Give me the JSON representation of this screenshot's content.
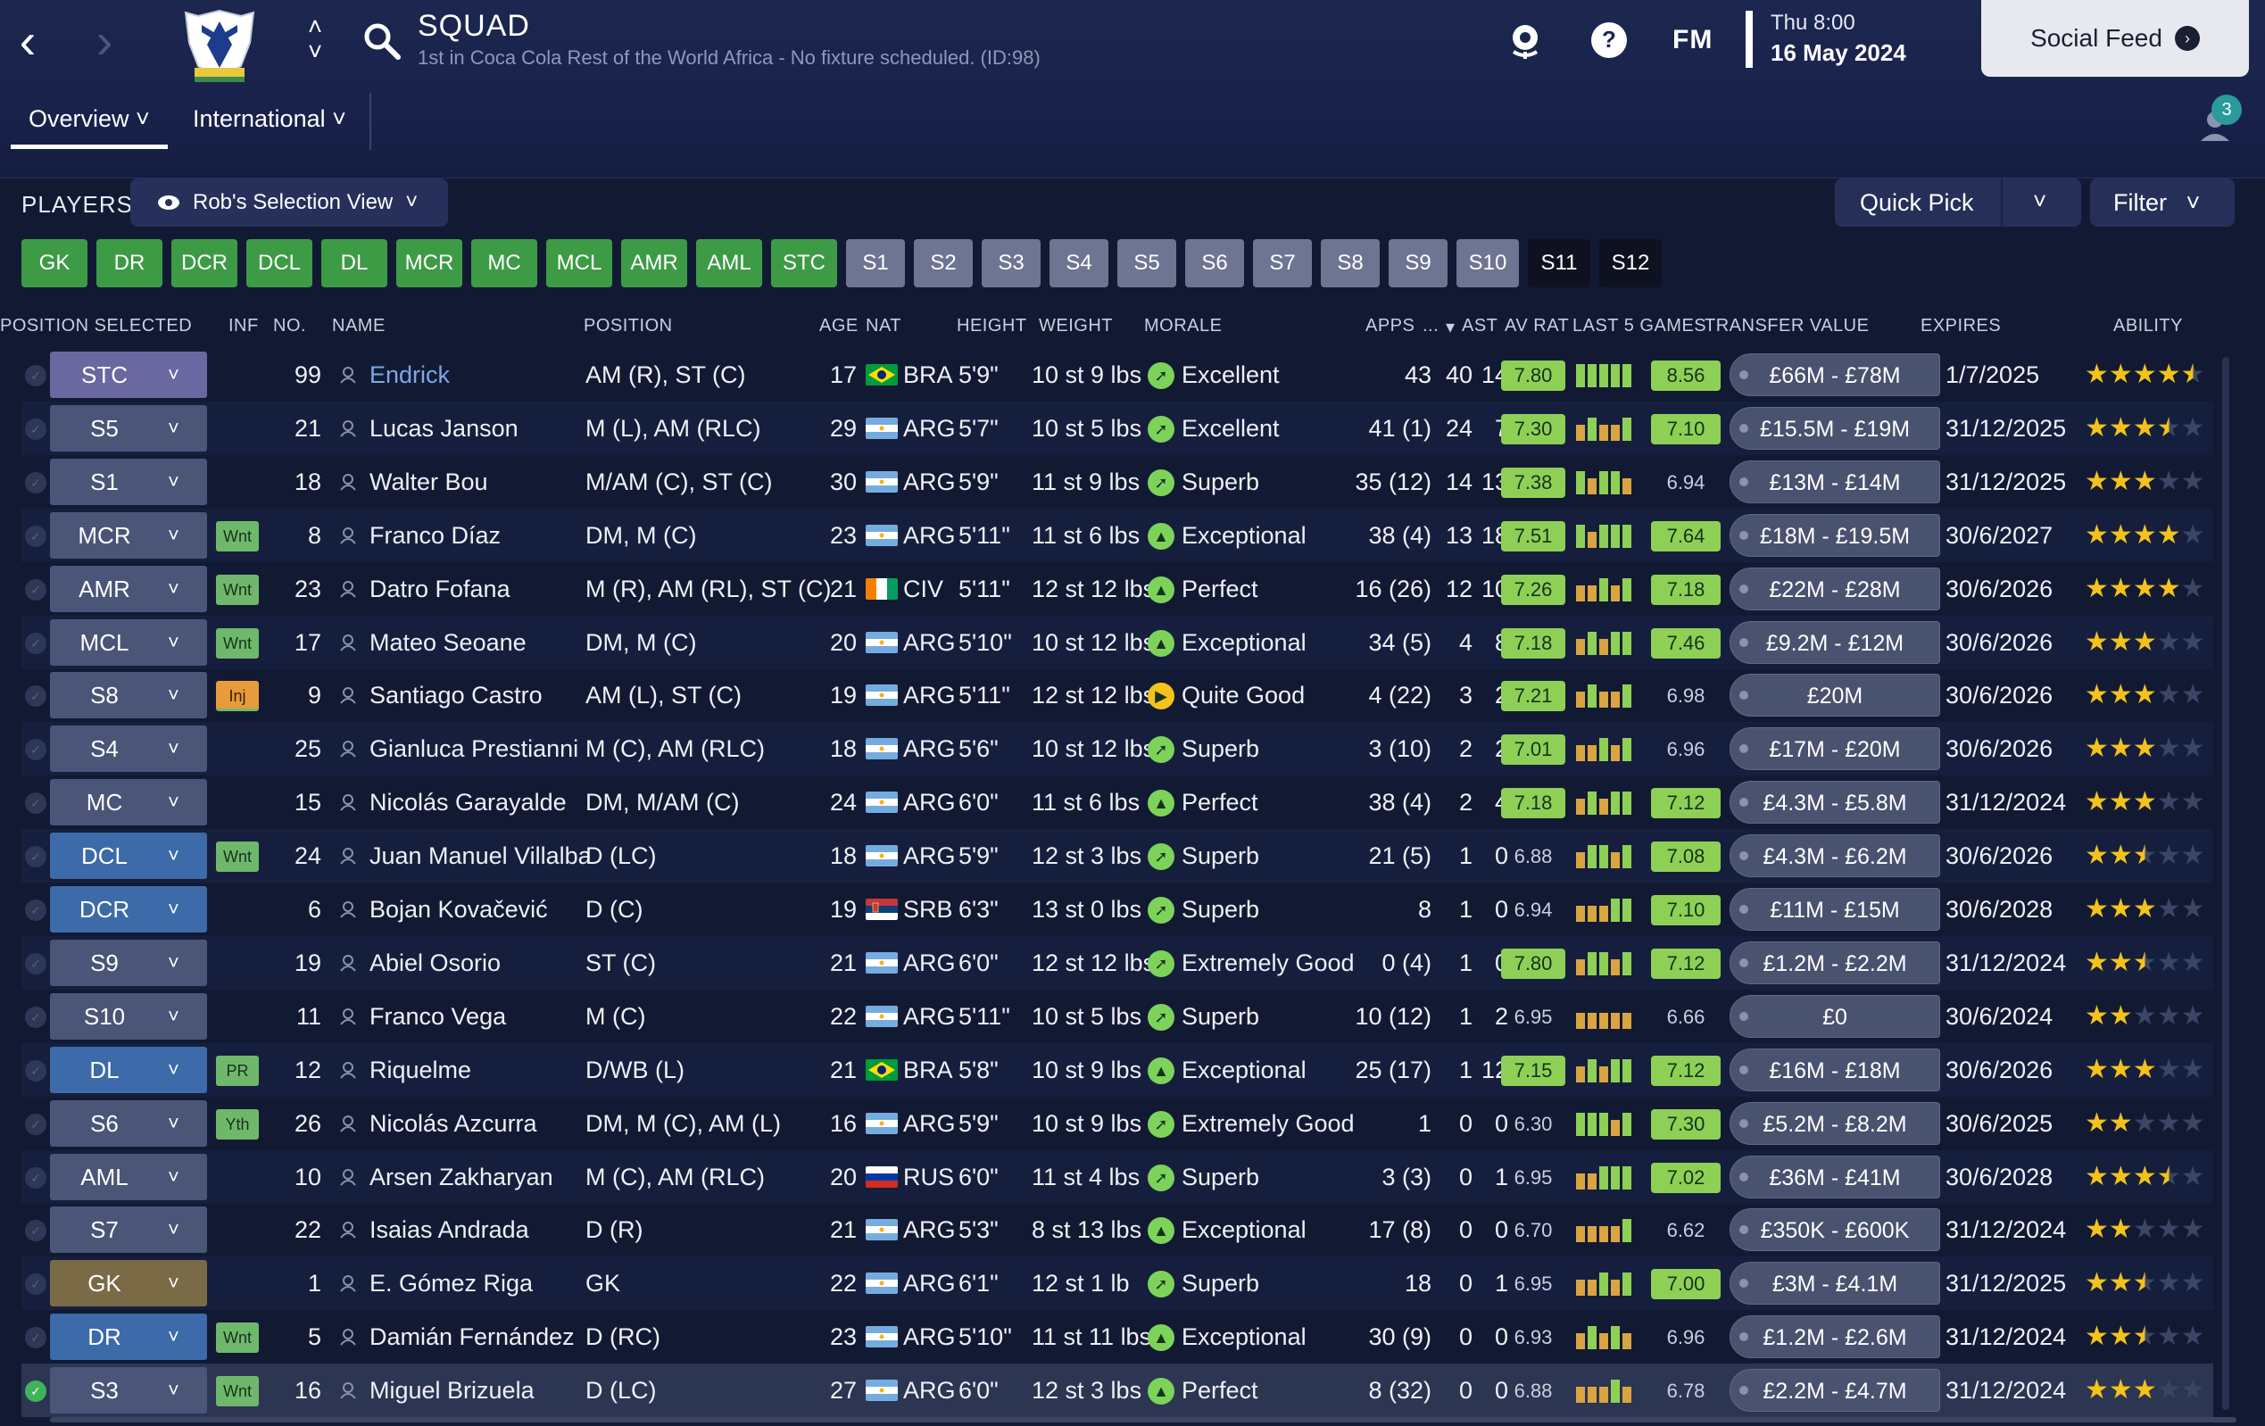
{
  "header": {
    "title": "SQUAD",
    "subtitle": "1st in Coca Cola Rest of the World Africa - No fixture scheduled. (ID:98)",
    "fm_logo": "FM",
    "date_day": "Thu 8:00",
    "date_full": "16 May 2024",
    "social_feed": "Social Feed",
    "notification_count": "3",
    "icons": [
      "back-icon",
      "forward-icon",
      "club-crest",
      "up-down-icon",
      "search-icon",
      "football-globe-icon",
      "help-icon",
      "notification-icon"
    ]
  },
  "tabs": [
    {
      "label": "Overview"
    },
    {
      "label": "International"
    }
  ],
  "toolbar": {
    "players_label": "PLAYERS",
    "view_label": "Rob's Selection View",
    "quick_pick": "Quick Pick",
    "filter": "Filter"
  },
  "position_chips": [
    {
      "label": "GK",
      "type": "filled"
    },
    {
      "label": "DR",
      "type": "filled"
    },
    {
      "label": "DCR",
      "type": "filled"
    },
    {
      "label": "DCL",
      "type": "filled"
    },
    {
      "label": "DL",
      "type": "filled"
    },
    {
      "label": "MCR",
      "type": "filled"
    },
    {
      "label": "MC",
      "type": "filled"
    },
    {
      "label": "MCL",
      "type": "filled"
    },
    {
      "label": "AMR",
      "type": "filled"
    },
    {
      "label": "AML",
      "type": "filled"
    },
    {
      "label": "STC",
      "type": "filled"
    },
    {
      "label": "S1",
      "type": "sub"
    },
    {
      "label": "S2",
      "type": "sub"
    },
    {
      "label": "S3",
      "type": "sub"
    },
    {
      "label": "S4",
      "type": "sub"
    },
    {
      "label": "S5",
      "type": "sub"
    },
    {
      "label": "S6",
      "type": "sub"
    },
    {
      "label": "S7",
      "type": "sub"
    },
    {
      "label": "S8",
      "type": "sub"
    },
    {
      "label": "S9",
      "type": "sub"
    },
    {
      "label": "S10",
      "type": "sub"
    },
    {
      "label": "S11",
      "type": "empty"
    },
    {
      "label": "S12",
      "type": "empty"
    }
  ],
  "columns": {
    "position_selected": "POSITION SELECTED",
    "inf": "INF",
    "no": "NO.",
    "name": "NAME",
    "position": "POSITION",
    "age": "AGE",
    "nat": "NAT",
    "height": "HEIGHT",
    "weight": "WEIGHT",
    "morale": "MORALE",
    "apps": "APPS",
    "more": "...",
    "ast": "AST",
    "av_rat": "AV RAT",
    "last5": "LAST 5 GAMES",
    "transfer_value": "TRANSFER VALUE",
    "expires": "EXPIRES",
    "ability": "ABILITY"
  },
  "colors": {
    "chip_green": "#3d9b46",
    "chip_sub": "#6d7593",
    "rating_green": "#8ed056",
    "star": "#f3c21b",
    "link": "#7fa6e6"
  },
  "players": [
    {
      "sel": "STC",
      "selcls": "bg-att",
      "inf": "",
      "no": "99",
      "name": "Endrick",
      "link": true,
      "position": "AM (R), ST (C)",
      "age": "17",
      "flag": "bra",
      "nat": "BRA",
      "height": "5'9\"",
      "weight": "10 st 9 lbs",
      "morale": "Excellent",
      "mor": "up",
      "apps": "43",
      "gls": "40",
      "ast": "14",
      "av": "7.80",
      "avg": true,
      "bars": [
        "g",
        "g",
        "g",
        "g",
        "g"
      ],
      "last": "8.56",
      "lastg": true,
      "tv": "£66M - £78M",
      "exp": "1/7/2025",
      "stars": 4.5,
      "checked": false
    },
    {
      "sel": "S5",
      "selcls": "bg-mid",
      "inf": "",
      "no": "21",
      "name": "Lucas Janson",
      "link": false,
      "position": "M (L), AM (RLC)",
      "age": "29",
      "flag": "arg",
      "nat": "ARG",
      "height": "5'7\"",
      "weight": "10 st 5 lbs",
      "morale": "Excellent",
      "mor": "up",
      "apps": "41 (1)",
      "gls": "24",
      "ast": "7",
      "av": "7.30",
      "avg": true,
      "bars": [
        "o",
        "g",
        "o",
        "o",
        "g"
      ],
      "last": "7.10",
      "lastg": true,
      "tv": "£15.5M - £19M",
      "exp": "31/12/2025",
      "stars": 3.5,
      "checked": false
    },
    {
      "sel": "S1",
      "selcls": "bg-mid",
      "inf": "",
      "no": "18",
      "name": "Walter Bou",
      "link": false,
      "position": "M/AM (C), ST (C)",
      "age": "30",
      "flag": "arg",
      "nat": "ARG",
      "height": "5'9\"",
      "weight": "11 st 9 lbs",
      "morale": "Superb",
      "mor": "up",
      "apps": "35 (12)",
      "gls": "14",
      "ast": "13",
      "av": "7.38",
      "avg": true,
      "bars": [
        "g",
        "o",
        "g",
        "g",
        "o"
      ],
      "last": "6.94",
      "lastg": false,
      "tv": "£13M - £14M",
      "exp": "31/12/2025",
      "stars": 3,
      "checked": false
    },
    {
      "sel": "MCR",
      "selcls": "bg-mid",
      "inf": "Wnt",
      "no": "8",
      "name": "Franco Díaz",
      "link": false,
      "position": "DM, M (C)",
      "age": "23",
      "flag": "arg",
      "nat": "ARG",
      "height": "5'11\"",
      "weight": "11 st 6 lbs",
      "morale": "Exceptional",
      "mor": "top",
      "apps": "38 (4)",
      "gls": "13",
      "ast": "18",
      "av": "7.51",
      "avg": true,
      "bars": [
        "g",
        "o",
        "g",
        "g",
        "g"
      ],
      "last": "7.64",
      "lastg": true,
      "tv": "£18M - £19.5M",
      "exp": "30/6/2027",
      "stars": 4,
      "checked": false
    },
    {
      "sel": "AMR",
      "selcls": "bg-mid",
      "inf": "Wnt",
      "no": "23",
      "name": "Datro Fofana",
      "link": false,
      "position": "M (R), AM (RL), ST (C)",
      "age": "21",
      "flag": "civ",
      "nat": "CIV",
      "height": "5'11\"",
      "weight": "12 st 12 lbs",
      "morale": "Perfect",
      "mor": "top",
      "apps": "16 (26)",
      "gls": "12",
      "ast": "10",
      "av": "7.26",
      "avg": true,
      "bars": [
        "o",
        "o",
        "g",
        "o",
        "g"
      ],
      "last": "7.18",
      "lastg": true,
      "tv": "£22M - £28M",
      "exp": "30/6/2026",
      "stars": 4,
      "checked": false
    },
    {
      "sel": "MCL",
      "selcls": "bg-mid",
      "inf": "Wnt",
      "no": "17",
      "name": "Mateo Seoane",
      "link": false,
      "position": "DM, M (C)",
      "age": "20",
      "flag": "arg",
      "nat": "ARG",
      "height": "5'10\"",
      "weight": "10 st 12 lbs",
      "morale": "Exceptional",
      "mor": "top",
      "apps": "34 (5)",
      "gls": "4",
      "ast": "8",
      "av": "7.18",
      "avg": true,
      "bars": [
        "o",
        "g",
        "o",
        "g",
        "g"
      ],
      "last": "7.46",
      "lastg": true,
      "tv": "£9.2M - £12M",
      "exp": "30/6/2026",
      "stars": 3,
      "checked": false
    },
    {
      "sel": "S8",
      "selcls": "bg-mid",
      "inf": "Inj",
      "no": "9",
      "name": "Santiago Castro",
      "link": false,
      "position": "AM (L), ST (C)",
      "age": "19",
      "flag": "arg",
      "nat": "ARG",
      "height": "5'11\"",
      "weight": "12 st 12 lbs",
      "morale": "Quite Good",
      "mor": "ok",
      "apps": "4 (22)",
      "gls": "3",
      "ast": "2",
      "av": "7.21",
      "avg": true,
      "bars": [
        "o",
        "g",
        "o",
        "o",
        "g"
      ],
      "last": "6.98",
      "lastg": false,
      "tv": "£20M",
      "exp": "30/6/2026",
      "stars": 3,
      "checked": false
    },
    {
      "sel": "S4",
      "selcls": "bg-mid",
      "inf": "",
      "no": "25",
      "name": "Gianluca Prestianni",
      "link": false,
      "position": "M (C), AM (RLC)",
      "age": "18",
      "flag": "arg",
      "nat": "ARG",
      "height": "5'6\"",
      "weight": "10 st 12 lbs",
      "morale": "Superb",
      "mor": "up",
      "apps": "3 (10)",
      "gls": "2",
      "ast": "2",
      "av": "7.01",
      "avg": true,
      "bars": [
        "o",
        "o",
        "g",
        "o",
        "g"
      ],
      "last": "6.96",
      "lastg": false,
      "tv": "£17M - £20M",
      "exp": "30/6/2026",
      "stars": 3,
      "checked": false
    },
    {
      "sel": "MC",
      "selcls": "bg-mid",
      "inf": "",
      "no": "15",
      "name": "Nicolás Garayalde",
      "link": false,
      "position": "DM, M/AM (C)",
      "age": "24",
      "flag": "arg",
      "nat": "ARG",
      "height": "6'0\"",
      "weight": "11 st 6 lbs",
      "morale": "Perfect",
      "mor": "top",
      "apps": "38 (4)",
      "gls": "2",
      "ast": "4",
      "av": "7.18",
      "avg": true,
      "bars": [
        "o",
        "g",
        "o",
        "g",
        "g"
      ],
      "last": "7.12",
      "lastg": true,
      "tv": "£4.3M - £5.8M",
      "exp": "31/12/2024",
      "stars": 3,
      "checked": false
    },
    {
      "sel": "DCL",
      "selcls": "bg-def",
      "inf": "Wnt",
      "no": "24",
      "name": "Juan Manuel Villalba",
      "link": false,
      "position": "D (LC)",
      "age": "18",
      "flag": "arg",
      "nat": "ARG",
      "height": "5'9\"",
      "weight": "12 st 3 lbs",
      "morale": "Superb",
      "mor": "up",
      "apps": "21 (5)",
      "gls": "1",
      "ast": "0",
      "av": "6.88",
      "avg": false,
      "bars": [
        "o",
        "g",
        "g",
        "o",
        "g"
      ],
      "last": "7.08",
      "lastg": true,
      "tv": "£4.3M - £6.2M",
      "exp": "30/6/2026",
      "stars": 2.5,
      "checked": false
    },
    {
      "sel": "DCR",
      "selcls": "bg-def",
      "inf": "",
      "no": "6",
      "name": "Bojan Kovačević",
      "link": false,
      "position": "D (C)",
      "age": "19",
      "flag": "srb",
      "nat": "SRB",
      "height": "6'3\"",
      "weight": "13 st 0 lbs",
      "morale": "Superb",
      "mor": "up",
      "apps": "8",
      "gls": "1",
      "ast": "0",
      "av": "6.94",
      "avg": false,
      "bars": [
        "o",
        "o",
        "o",
        "g",
        "g"
      ],
      "last": "7.10",
      "lastg": true,
      "tv": "£11M - £15M",
      "exp": "30/6/2028",
      "stars": 3,
      "checked": false
    },
    {
      "sel": "S9",
      "selcls": "bg-mid",
      "inf": "",
      "no": "19",
      "name": "Abiel Osorio",
      "link": false,
      "position": "ST (C)",
      "age": "21",
      "flag": "arg",
      "nat": "ARG",
      "height": "6'0\"",
      "weight": "12 st 12 lbs",
      "morale": "Extremely Good",
      "mor": "up",
      "apps": "0 (4)",
      "gls": "1",
      "ast": "0",
      "av": "7.80",
      "avg": true,
      "bars": [
        "o",
        "g",
        "g",
        "o",
        "g"
      ],
      "last": "7.12",
      "lastg": true,
      "tv": "£1.2M - £2.2M",
      "exp": "31/12/2024",
      "stars": 2.5,
      "checked": false
    },
    {
      "sel": "S10",
      "selcls": "bg-mid",
      "inf": "",
      "no": "11",
      "name": "Franco Vega",
      "link": false,
      "position": "M (C)",
      "age": "22",
      "flag": "arg",
      "nat": "ARG",
      "height": "5'11\"",
      "weight": "10 st 5 lbs",
      "morale": "Superb",
      "mor": "up",
      "apps": "10 (12)",
      "gls": "1",
      "ast": "2",
      "av": "6.95",
      "avg": false,
      "bars": [
        "o",
        "o",
        "o",
        "o",
        "o"
      ],
      "last": "6.66",
      "lastg": false,
      "tv": "£0",
      "exp": "30/6/2024",
      "stars": 2,
      "checked": false
    },
    {
      "sel": "DL",
      "selcls": "bg-def",
      "inf": "PR",
      "no": "12",
      "name": "Riquelme",
      "link": false,
      "position": "D/WB (L)",
      "age": "21",
      "flag": "bra",
      "nat": "BRA",
      "height": "5'8\"",
      "weight": "10 st 9 lbs",
      "morale": "Exceptional",
      "mor": "top",
      "apps": "25 (17)",
      "gls": "1",
      "ast": "12",
      "av": "7.15",
      "avg": true,
      "bars": [
        "o",
        "g",
        "o",
        "g",
        "g"
      ],
      "last": "7.12",
      "lastg": true,
      "tv": "£16M - £18M",
      "exp": "30/6/2026",
      "stars": 3,
      "checked": false
    },
    {
      "sel": "S6",
      "selcls": "bg-mid",
      "inf": "Yth",
      "no": "26",
      "name": "Nicolás Azcurra",
      "link": false,
      "position": "DM, M (C), AM (L)",
      "age": "16",
      "flag": "arg",
      "nat": "ARG",
      "height": "5'9\"",
      "weight": "10 st 9 lbs",
      "morale": "Extremely Good",
      "mor": "up",
      "apps": "1",
      "gls": "0",
      "ast": "0",
      "av": "6.30",
      "avg": false,
      "bars": [
        "g",
        "g",
        "g",
        "o",
        "g"
      ],
      "last": "7.30",
      "lastg": true,
      "tv": "£5.2M - £8.2M",
      "exp": "30/6/2025",
      "stars": 2,
      "checked": false
    },
    {
      "sel": "AML",
      "selcls": "bg-mid",
      "inf": "",
      "no": "10",
      "name": "Arsen Zakharyan",
      "link": false,
      "position": "M (C), AM (RLC)",
      "age": "20",
      "flag": "rus",
      "nat": "RUS",
      "height": "6'0\"",
      "weight": "11 st 4 lbs",
      "morale": "Superb",
      "mor": "up",
      "apps": "3 (3)",
      "gls": "0",
      "ast": "1",
      "av": "6.95",
      "avg": false,
      "bars": [
        "o",
        "o",
        "g",
        "g",
        "g"
      ],
      "last": "7.02",
      "lastg": true,
      "tv": "£36M - £41M",
      "exp": "30/6/2028",
      "stars": 3.5,
      "checked": false
    },
    {
      "sel": "S7",
      "selcls": "bg-mid",
      "inf": "",
      "no": "22",
      "name": "Isaias Andrada",
      "link": false,
      "position": "D (R)",
      "age": "21",
      "flag": "arg",
      "nat": "ARG",
      "height": "5'3\"",
      "weight": "8 st 13 lbs",
      "morale": "Exceptional",
      "mor": "top",
      "apps": "17 (8)",
      "gls": "0",
      "ast": "0",
      "av": "6.70",
      "avg": false,
      "bars": [
        "o",
        "o",
        "o",
        "o",
        "g"
      ],
      "last": "6.62",
      "lastg": false,
      "tv": "£350K - £600K",
      "exp": "31/12/2024",
      "stars": 2,
      "checked": false
    },
    {
      "sel": "GK",
      "selcls": "bg-gk",
      "inf": "",
      "no": "1",
      "name": "E. Gómez Riga",
      "link": false,
      "position": "GK",
      "age": "22",
      "flag": "arg",
      "nat": "ARG",
      "height": "6'1\"",
      "weight": "12 st 1 lb",
      "morale": "Superb",
      "mor": "up",
      "apps": "18",
      "gls": "0",
      "ast": "1",
      "av": "6.95",
      "avg": false,
      "bars": [
        "o",
        "o",
        "g",
        "o",
        "g"
      ],
      "last": "7.00",
      "lastg": true,
      "tv": "£3M - £4.1M",
      "exp": "31/12/2025",
      "stars": 2.5,
      "checked": false
    },
    {
      "sel": "DR",
      "selcls": "bg-def",
      "inf": "Wnt",
      "no": "5",
      "name": "Damián Fernández",
      "link": false,
      "position": "D (RC)",
      "age": "23",
      "flag": "arg",
      "nat": "ARG",
      "height": "5'10\"",
      "weight": "11 st 11 lbs",
      "morale": "Exceptional",
      "mor": "top",
      "apps": "30 (9)",
      "gls": "0",
      "ast": "0",
      "av": "6.93",
      "avg": false,
      "bars": [
        "o",
        "g",
        "o",
        "g",
        "o"
      ],
      "last": "6.96",
      "lastg": false,
      "tv": "£1.2M - £2.6M",
      "exp": "31/12/2024",
      "stars": 2.5,
      "checked": false
    },
    {
      "sel": "S3",
      "selcls": "bg-mid",
      "inf": "Wnt",
      "no": "16",
      "name": "Miguel Brizuela",
      "link": false,
      "position": "D (LC)",
      "age": "27",
      "flag": "arg",
      "nat": "ARG",
      "height": "6'0\"",
      "weight": "12 st 3 lbs",
      "morale": "Perfect",
      "mor": "top",
      "apps": "8 (32)",
      "gls": "0",
      "ast": "0",
      "av": "6.88",
      "avg": false,
      "bars": [
        "o",
        "o",
        "o",
        "g",
        "o"
      ],
      "last": "6.78",
      "lastg": false,
      "tv": "£2.2M - £4.7M",
      "exp": "31/12/2024",
      "stars": 3,
      "checked": true
    }
  ]
}
